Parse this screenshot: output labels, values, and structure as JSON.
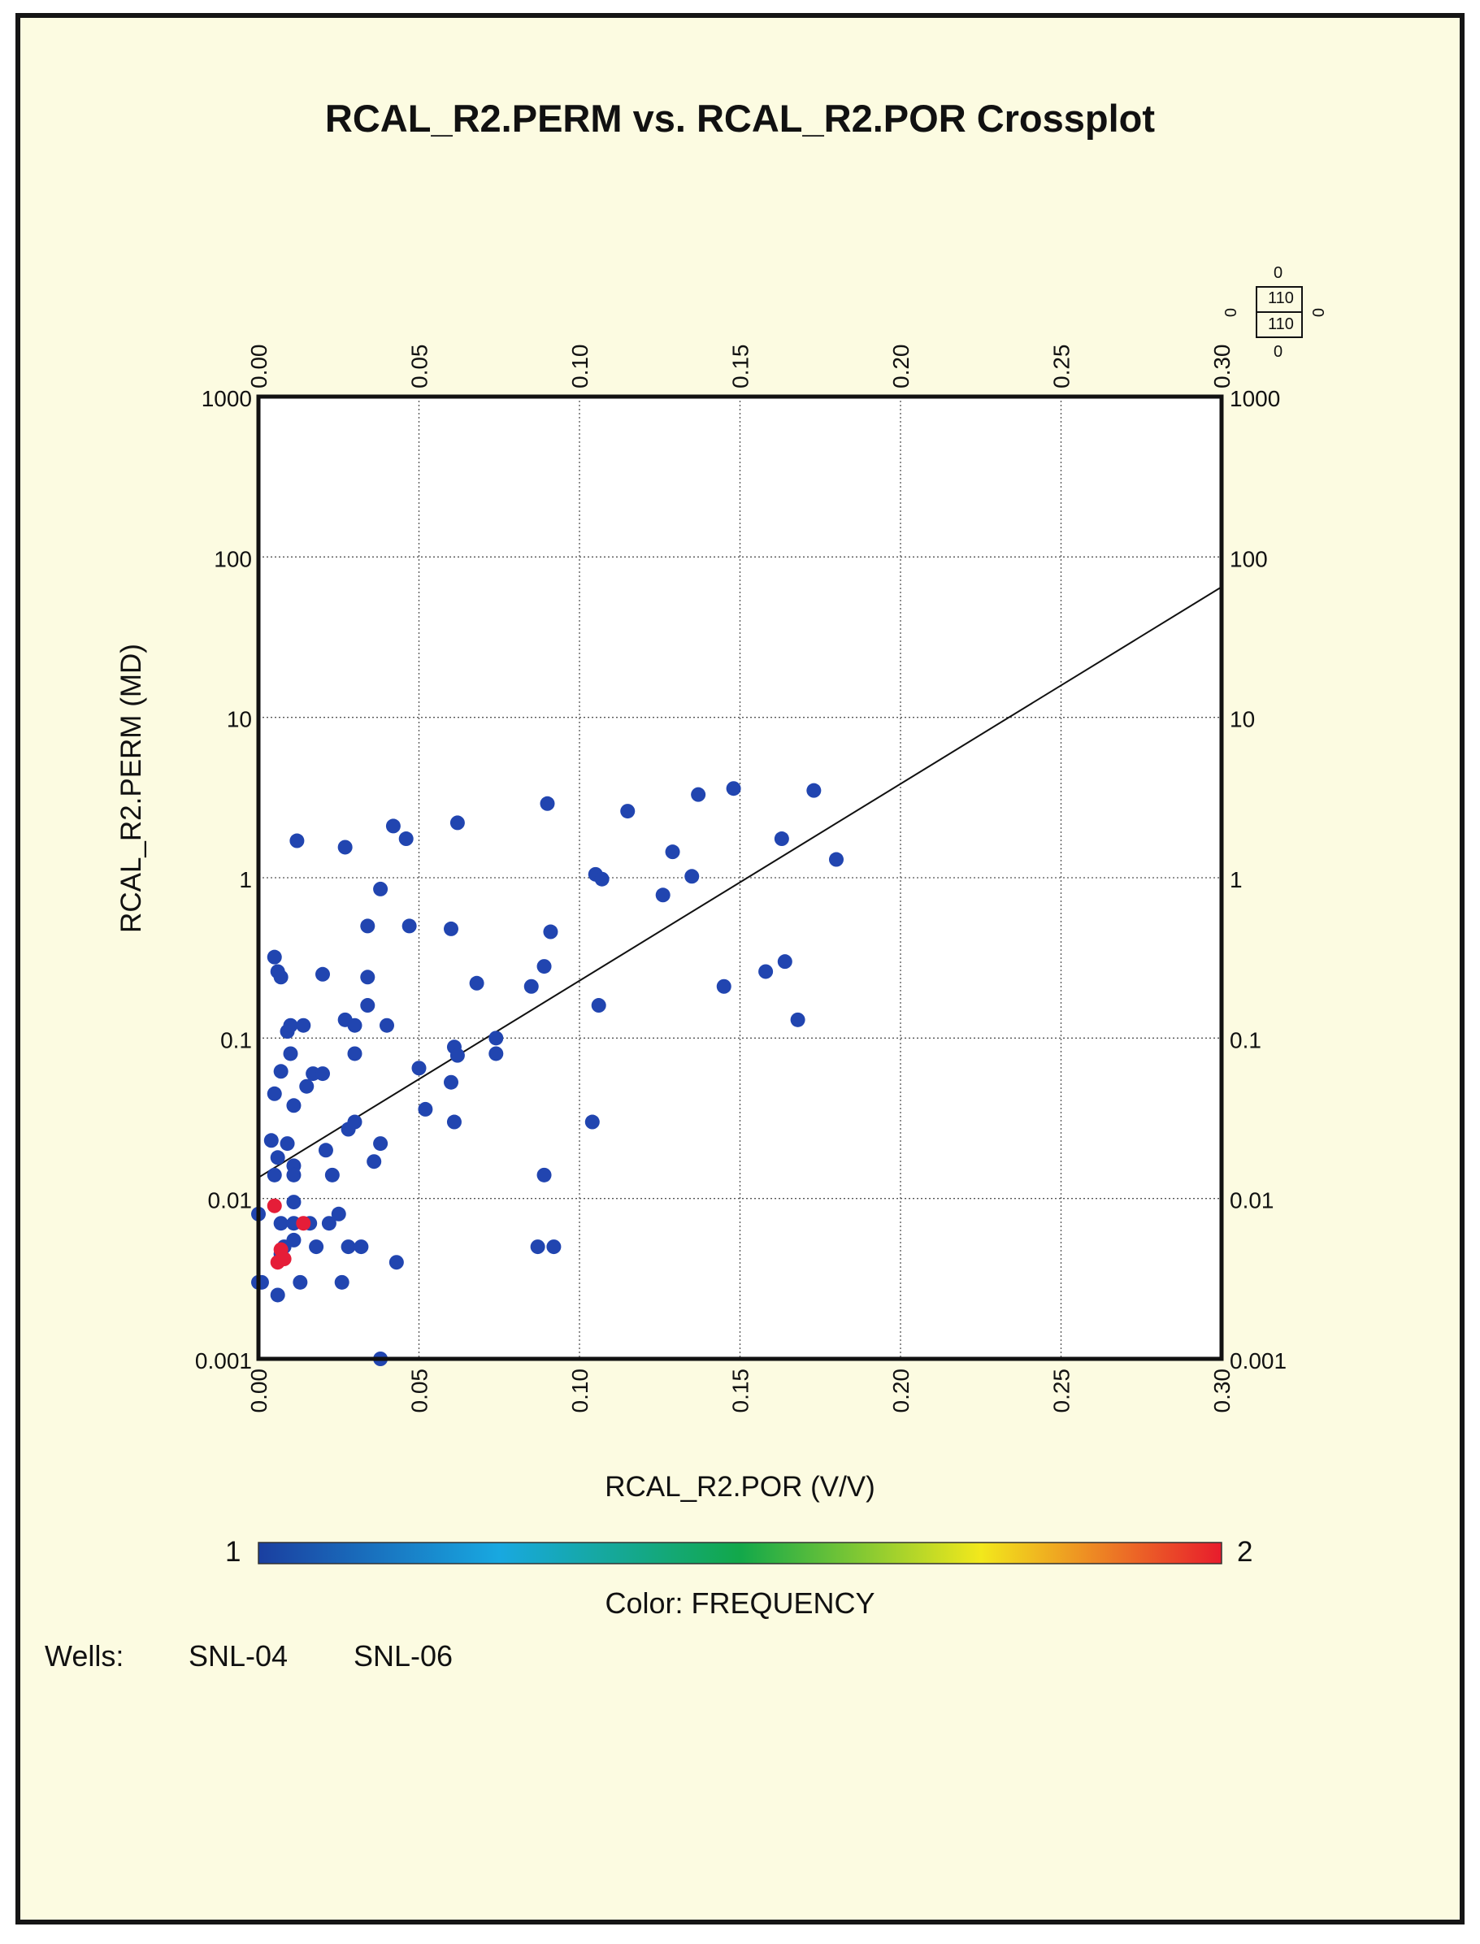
{
  "chart_data": {
    "type": "scatter",
    "title": "RCAL_R2.PERM vs. RCAL_R2.POR Crossplot",
    "xlabel": "RCAL_R2.POR (V/V)",
    "ylabel": "RCAL_R2.PERM (MD)",
    "xlim": [
      0,
      0.3
    ],
    "ylim": [
      0.001,
      1000
    ],
    "yscale": "log",
    "grid": true,
    "x_ticks": [
      "0.00",
      "0.05",
      "0.10",
      "0.15",
      "0.20",
      "0.25",
      "0.30"
    ],
    "y_ticks": [
      "0.001",
      "0.01",
      "0.1",
      "1",
      "10",
      "100",
      "1000"
    ],
    "trend_line": {
      "x": [
        0,
        0.3
      ],
      "y": [
        0.0135,
        65
      ]
    },
    "colorbar": {
      "label": "Color: FREQUENCY",
      "min": "1",
      "max": "2",
      "colors": [
        "#1a3fa0",
        "#18a8e0",
        "#12a84a",
        "#f2e81c",
        "#e81c2c"
      ]
    },
    "series": [
      {
        "frequency": 1,
        "color": "#2145b0",
        "points": [
          [
            0.0,
            0.008
          ],
          [
            0.0,
            0.003
          ],
          [
            0.001,
            0.003
          ],
          [
            0.004,
            0.023
          ],
          [
            0.005,
            0.014
          ],
          [
            0.005,
            0.045
          ],
          [
            0.005,
            0.32
          ],
          [
            0.006,
            0.26
          ],
          [
            0.006,
            0.0025
          ],
          [
            0.006,
            0.018
          ],
          [
            0.007,
            0.24
          ],
          [
            0.007,
            0.062
          ],
          [
            0.007,
            0.007
          ],
          [
            0.007,
            0.0045
          ],
          [
            0.008,
            0.005
          ],
          [
            0.009,
            0.022
          ],
          [
            0.009,
            0.11
          ],
          [
            0.01,
            0.12
          ],
          [
            0.01,
            0.08
          ],
          [
            0.011,
            0.016
          ],
          [
            0.011,
            0.014
          ],
          [
            0.011,
            0.038
          ],
          [
            0.011,
            0.0055
          ],
          [
            0.011,
            0.007
          ],
          [
            0.011,
            0.0095
          ],
          [
            0.012,
            1.7
          ],
          [
            0.013,
            0.003
          ],
          [
            0.014,
            0.12
          ],
          [
            0.015,
            0.05
          ],
          [
            0.016,
            0.007
          ],
          [
            0.017,
            0.06
          ],
          [
            0.018,
            0.005
          ],
          [
            0.02,
            0.06
          ],
          [
            0.02,
            0.25
          ],
          [
            0.021,
            0.02
          ],
          [
            0.022,
            0.007
          ],
          [
            0.023,
            0.014
          ],
          [
            0.025,
            0.008
          ],
          [
            0.026,
            0.003
          ],
          [
            0.027,
            1.55
          ],
          [
            0.027,
            0.13
          ],
          [
            0.028,
            0.005
          ],
          [
            0.028,
            0.027
          ],
          [
            0.03,
            0.12
          ],
          [
            0.03,
            0.03
          ],
          [
            0.03,
            0.08
          ],
          [
            0.032,
            0.005
          ],
          [
            0.034,
            0.5
          ],
          [
            0.034,
            0.24
          ],
          [
            0.034,
            0.16
          ],
          [
            0.036,
            0.017
          ],
          [
            0.038,
            0.022
          ],
          [
            0.038,
            0.85
          ],
          [
            0.038,
            0.001
          ],
          [
            0.04,
            0.12
          ],
          [
            0.042,
            2.1
          ],
          [
            0.043,
            0.004
          ],
          [
            0.046,
            1.75
          ],
          [
            0.047,
            0.5
          ],
          [
            0.05,
            0.065
          ],
          [
            0.052,
            0.036
          ],
          [
            0.06,
            0.48
          ],
          [
            0.06,
            0.053
          ],
          [
            0.061,
            0.03
          ],
          [
            0.061,
            0.088
          ],
          [
            0.062,
            0.078
          ],
          [
            0.062,
            2.2
          ],
          [
            0.068,
            0.22
          ],
          [
            0.074,
            0.1
          ],
          [
            0.074,
            0.08
          ],
          [
            0.085,
            0.21
          ],
          [
            0.087,
            0.005
          ],
          [
            0.089,
            0.28
          ],
          [
            0.089,
            0.014
          ],
          [
            0.09,
            2.9
          ],
          [
            0.091,
            0.46
          ],
          [
            0.092,
            0.005
          ],
          [
            0.104,
            0.03
          ],
          [
            0.105,
            1.05
          ],
          [
            0.106,
            0.16
          ],
          [
            0.107,
            0.98
          ],
          [
            0.115,
            2.6
          ],
          [
            0.126,
            0.78
          ],
          [
            0.129,
            1.45
          ],
          [
            0.135,
            1.02
          ],
          [
            0.137,
            3.3
          ],
          [
            0.145,
            0.21
          ],
          [
            0.148,
            3.6
          ],
          [
            0.158,
            0.26
          ],
          [
            0.163,
            1.75
          ],
          [
            0.164,
            0.3
          ],
          [
            0.168,
            0.13
          ],
          [
            0.173,
            3.5
          ],
          [
            0.18,
            1.3
          ]
        ]
      },
      {
        "frequency": 2,
        "color": "#e51d38",
        "points": [
          [
            0.005,
            0.009
          ],
          [
            0.006,
            0.004
          ],
          [
            0.007,
            0.0048
          ],
          [
            0.008,
            0.0042
          ],
          [
            0.014,
            0.007
          ]
        ]
      }
    ]
  },
  "legend": {
    "wells_label": "Wells:",
    "wells": [
      "SNL-04",
      "SNL-06"
    ]
  },
  "gauge": {
    "top": "0",
    "bottom": "0",
    "left": "0",
    "right": "0",
    "center_top": "110",
    "center_bottom": "110"
  }
}
